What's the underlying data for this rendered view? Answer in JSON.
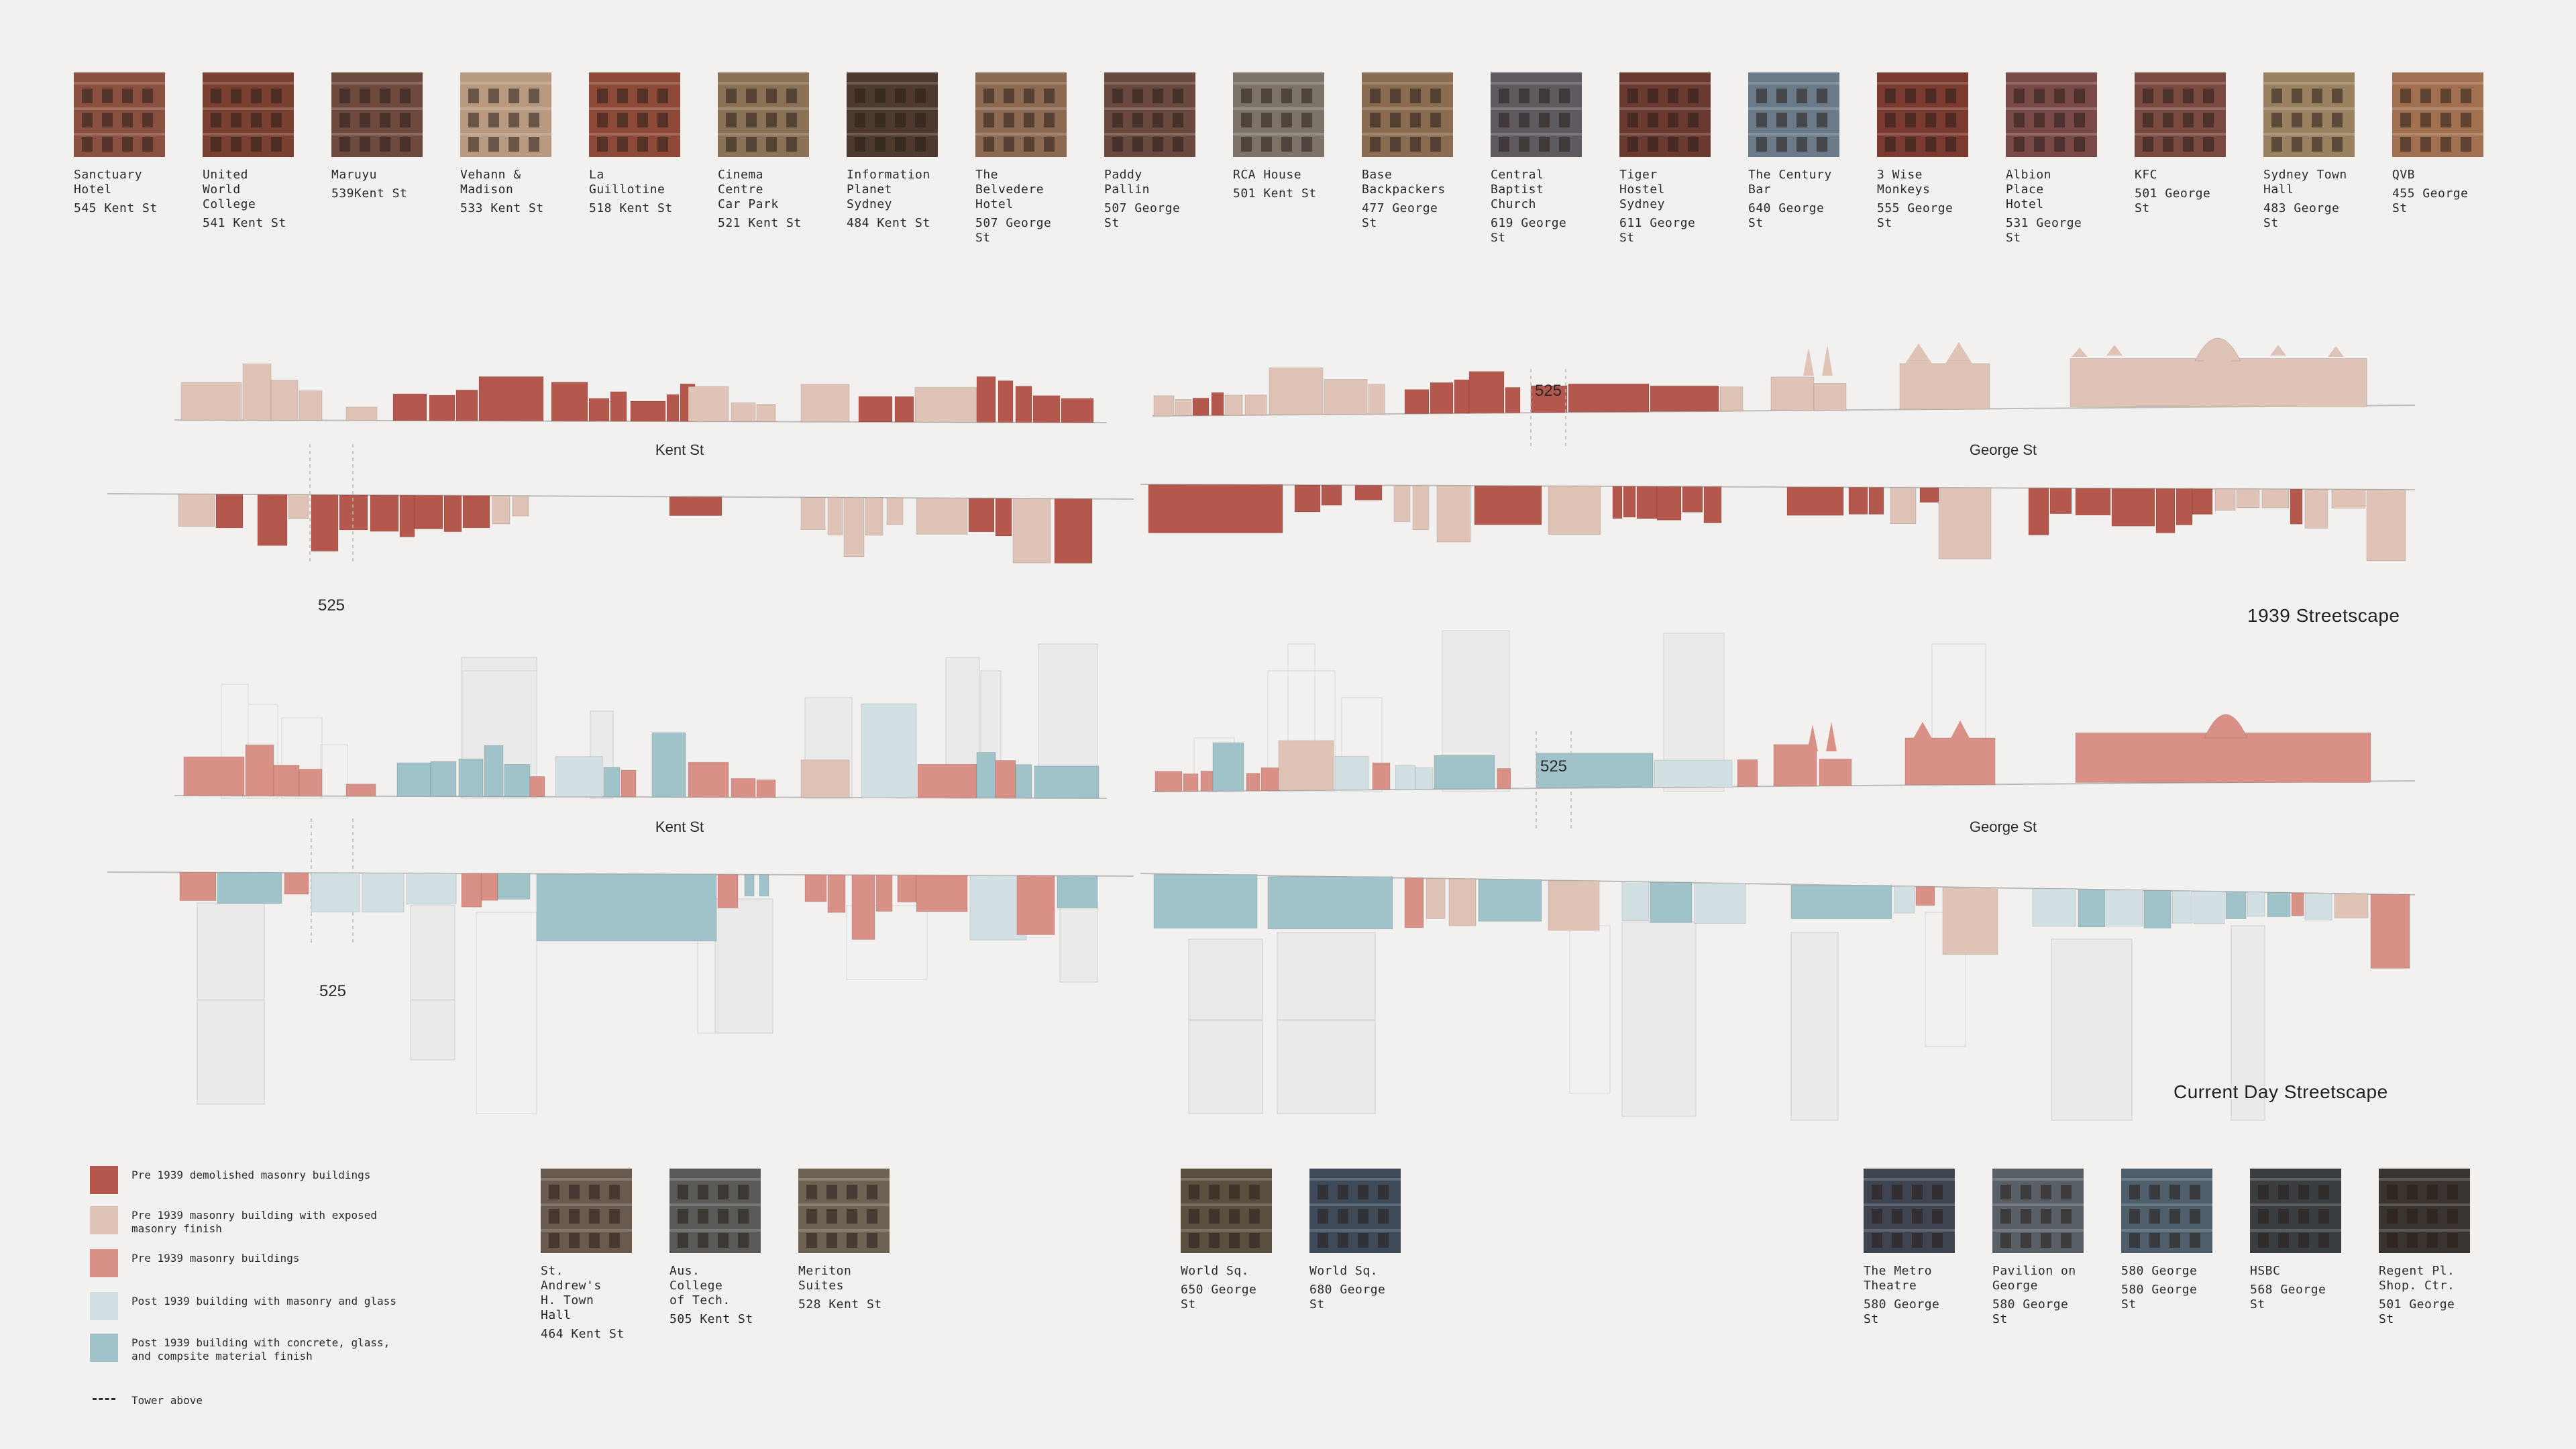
{
  "top_buildings": [
    {
      "name": "Sanctuary\nHotel",
      "address": "545 Kent St",
      "color": "#8a5040"
    },
    {
      "name": "United World\nCollege",
      "address": "541 Kent St",
      "color": "#7a4032"
    },
    {
      "name": "Maruyu",
      "address": "539Kent St",
      "color": "#6e4a3e"
    },
    {
      "name": "Vehann &\nMadison",
      "address": "533 Kent St",
      "color": "#b89a80"
    },
    {
      "name": "La Guillotine",
      "address": "518 Kent St",
      "color": "#8e4a38"
    },
    {
      "name": "Cinema Centre\nCar Park",
      "address": "521 Kent St",
      "color": "#8a7256"
    },
    {
      "name": "Information\nPlanet Sydney",
      "address": "484 Kent St",
      "color": "#4e3a2e"
    },
    {
      "name": "The Belvedere\nHotel",
      "address": "507 George St",
      "color": "#8c6a52"
    },
    {
      "name": "Paddy Pallin",
      "address": "507 George St",
      "color": "#6a4a3e"
    },
    {
      "name": "RCA House",
      "address": "501 Kent St",
      "color": "#7c7468"
    },
    {
      "name": "Base\nBackpackers",
      "address": "477 George St",
      "color": "#8a6c50"
    },
    {
      "name": "Central\nBaptist\nChurch",
      "address": "619 George St",
      "color": "#5e5a60"
    },
    {
      "name": "Tiger Hostel\nSydney",
      "address": "611 George St",
      "color": "#6a3a30"
    },
    {
      "name": "The Century\nBar",
      "address": "640 George St",
      "color": "#6a7a88"
    },
    {
      "name": "3 Wise\nMonkeys",
      "address": "555 George St",
      "color": "#7a3a30"
    },
    {
      "name": "Albion Place\nHotel",
      "address": "531 George St",
      "color": "#7a4a48"
    },
    {
      "name": "KFC",
      "address": "501 George St",
      "color": "#7a4a40"
    },
    {
      "name": "Sydney Town\nHall",
      "address": "483 George St",
      "color": "#9a8260"
    },
    {
      "name": "QVB",
      "address": "455 George St",
      "color": "#a07050"
    }
  ],
  "streets": {
    "kent_upper": "Kent St",
    "george_upper": "George St",
    "kent_lower": "Kent St",
    "george_lower": "George St"
  },
  "markers": {
    "m1": "525",
    "m2": "525",
    "m3": "525",
    "m4": "525"
  },
  "sections": {
    "s1939": "1939 Streetscape",
    "current": "Current Day Streetscape"
  },
  "legend": [
    {
      "label": "Pre 1939 demolished masonry buildings",
      "color": "#b4574c",
      "type": "swatch"
    },
    {
      "label": "Pre 1939 masonry building with exposed masonry finish",
      "color": "#dfc3b7",
      "type": "swatch"
    },
    {
      "label": "Pre 1939 masonry buildings",
      "color": "#d99087",
      "type": "swatch"
    },
    {
      "label": "Post 1939 building with masonry and glass",
      "color": "#d3e0e3",
      "type": "swatch"
    },
    {
      "label": "Post 1939 building with concrete, glass, and compsite material finish",
      "color": "#9fc3c9",
      "type": "swatch"
    },
    {
      "label": "Tower above",
      "color": "#333333",
      "type": "dash"
    }
  ],
  "bottom_groups": [
    [
      {
        "name": "St. Andrew's\nH. Town Hall",
        "address": "464 Kent St",
        "color": "#6a5a4e"
      },
      {
        "name": "Aus. College\nof Tech.",
        "address": "505 Kent St",
        "color": "#5a5a58"
      },
      {
        "name": "Meriton Suites",
        "address": "528 Kent St",
        "color": "#6e6252"
      }
    ],
    [
      {
        "name": "World Sq.",
        "address": "650 George St",
        "color": "#5a5040"
      },
      {
        "name": "World Sq.",
        "address": "680 George St",
        "color": "#3e4a58"
      }
    ],
    [
      {
        "name": "The Metro\nTheatre",
        "address": "580 George St",
        "color": "#3e4450"
      },
      {
        "name": "Pavilion on\nGeorge",
        "address": "580 George St",
        "color": "#5a6068"
      },
      {
        "name": "580 George",
        "address": "580 George St",
        "color": "#4e5e6a"
      },
      {
        "name": "HSBC",
        "address": "568 George St",
        "color": "#3a3e40"
      },
      {
        "name": "Regent Pl.\nShop. Ctr.",
        "address": "501 George St",
        "color": "#3a3430"
      }
    ]
  ]
}
